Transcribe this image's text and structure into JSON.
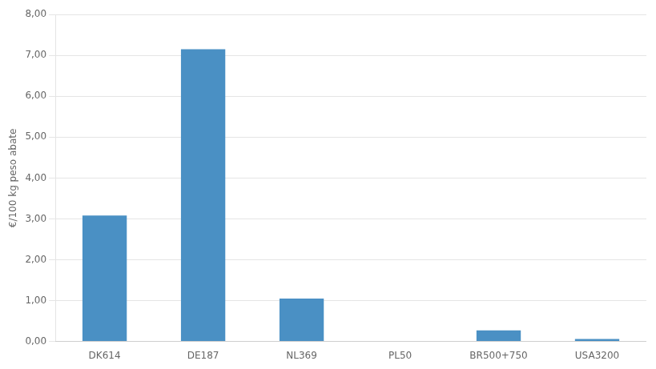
{
  "chart_data": {
    "type": "bar",
    "ylabel": "€/100 kg peso abate",
    "categories": [
      "DK614",
      "DE187",
      "NL369",
      "PL50",
      "BR500+750",
      "USA3200"
    ],
    "values": [
      3.08,
      7.15,
      1.05,
      0.0,
      0.27,
      0.06
    ],
    "color": "#4a90c4",
    "ylim": [
      0,
      8.0
    ],
    "yticks": [
      {
        "value": 0.0,
        "label": "0,00"
      },
      {
        "value": 1.0,
        "label": "1,00"
      },
      {
        "value": 2.0,
        "label": "2,00"
      },
      {
        "value": 3.0,
        "label": "3,00"
      },
      {
        "value": 4.0,
        "label": "4,00"
      },
      {
        "value": 5.0,
        "label": "5,00"
      },
      {
        "value": 6.0,
        "label": "6,00"
      },
      {
        "value": 7.0,
        "label": "7,00"
      },
      {
        "value": 8.0,
        "label": "8,00"
      }
    ],
    "grid": true
  }
}
